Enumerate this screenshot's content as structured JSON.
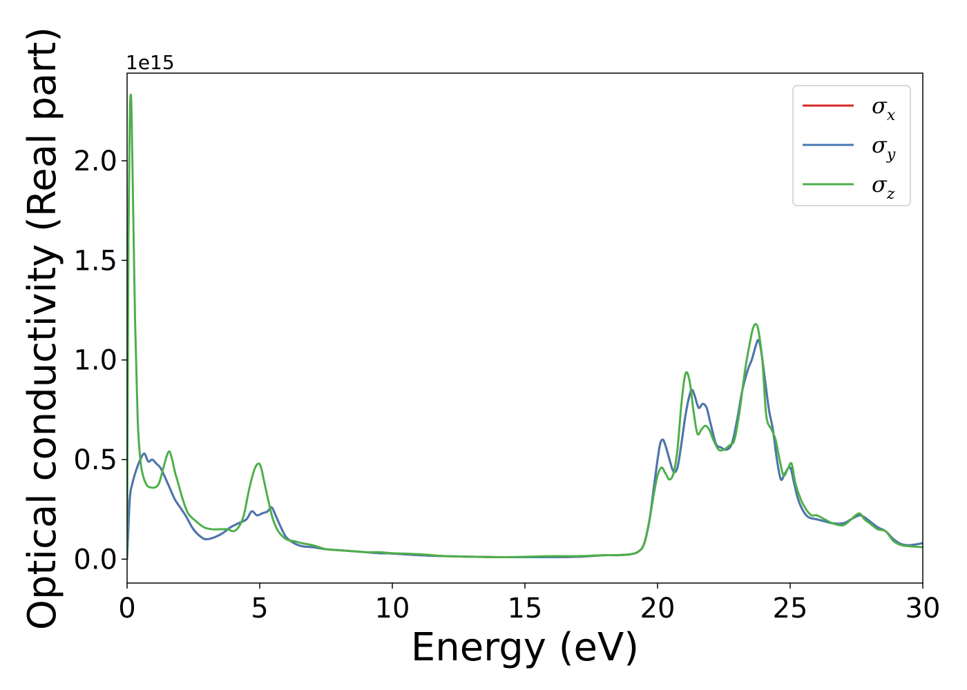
{
  "chart_data": {
    "type": "line",
    "title": "",
    "xlabel": "Energy (eV)",
    "ylabel": "Optical conductivity (Real part)",
    "y_offset_label": "1e15",
    "xlim": [
      0,
      30
    ],
    "ylim": [
      -0.12,
      2.44
    ],
    "x_ticks": [
      0,
      5,
      10,
      15,
      20,
      25,
      30
    ],
    "x_tick_labels": [
      "0",
      "5",
      "10",
      "15",
      "20",
      "25",
      "30"
    ],
    "y_ticks": [
      0.0,
      0.5,
      1.0,
      1.5,
      2.0
    ],
    "y_tick_labels": [
      "0.0",
      "0.5",
      "1.0",
      "1.5",
      "2.0"
    ],
    "grid": false,
    "legend_position": "top-right",
    "series": [
      {
        "name": "σx",
        "sub": "x",
        "color": "#d62728",
        "x": [
          0,
          0.1,
          0.2,
          0.35,
          0.5,
          0.65,
          0.8,
          0.95,
          1.1,
          1.25,
          1.4,
          1.6,
          1.8,
          2.0,
          2.2,
          2.5,
          2.8,
          3.0,
          3.3,
          3.6,
          3.9,
          4.2,
          4.5,
          4.7,
          4.9,
          5.1,
          5.3,
          5.45,
          5.6,
          5.8,
          6.0,
          6.3,
          6.6,
          7.0,
          7.5,
          8.0,
          8.5,
          9.0,
          9.5,
          10.0,
          11.0,
          12.0,
          13.0,
          14.0,
          15.0,
          16.0,
          17.0,
          18.0,
          18.5,
          19.0,
          19.3,
          19.5,
          19.7,
          19.85,
          20.0,
          20.1,
          20.2,
          20.3,
          20.45,
          20.6,
          20.75,
          20.9,
          21.05,
          21.2,
          21.3,
          21.4,
          21.55,
          21.7,
          21.85,
          22.0,
          22.2,
          22.4,
          22.6,
          22.8,
          23.0,
          23.2,
          23.4,
          23.55,
          23.7,
          23.8,
          23.9,
          24.05,
          24.2,
          24.35,
          24.5,
          24.65,
          24.8,
          25.0,
          25.15,
          25.3,
          25.5,
          25.7,
          26.0,
          26.3,
          26.6,
          27.0,
          27.3,
          27.6,
          27.8,
          28.0,
          28.3,
          28.6,
          28.9,
          29.2,
          29.5,
          30.0
        ],
        "values": [
          0.0,
          0.3,
          0.38,
          0.45,
          0.5,
          0.53,
          0.49,
          0.5,
          0.48,
          0.46,
          0.42,
          0.36,
          0.3,
          0.26,
          0.22,
          0.15,
          0.11,
          0.1,
          0.11,
          0.13,
          0.16,
          0.18,
          0.2,
          0.24,
          0.22,
          0.23,
          0.24,
          0.26,
          0.22,
          0.16,
          0.11,
          0.08,
          0.065,
          0.06,
          0.05,
          0.045,
          0.04,
          0.035,
          0.03,
          0.028,
          0.02,
          0.015,
          0.012,
          0.01,
          0.01,
          0.01,
          0.012,
          0.02,
          0.02,
          0.025,
          0.04,
          0.08,
          0.2,
          0.35,
          0.5,
          0.58,
          0.6,
          0.57,
          0.5,
          0.44,
          0.46,
          0.58,
          0.72,
          0.82,
          0.85,
          0.82,
          0.76,
          0.78,
          0.76,
          0.68,
          0.58,
          0.56,
          0.55,
          0.58,
          0.7,
          0.85,
          0.95,
          1.0,
          1.07,
          1.1,
          1.05,
          0.9,
          0.75,
          0.65,
          0.5,
          0.4,
          0.43,
          0.46,
          0.38,
          0.3,
          0.24,
          0.21,
          0.2,
          0.19,
          0.18,
          0.18,
          0.2,
          0.22,
          0.21,
          0.19,
          0.16,
          0.14,
          0.1,
          0.075,
          0.07,
          0.08
        ]
      },
      {
        "name": "σy",
        "sub": "y",
        "color": "#4878b0",
        "x": [
          0,
          0.1,
          0.2,
          0.35,
          0.5,
          0.65,
          0.8,
          0.95,
          1.1,
          1.25,
          1.4,
          1.6,
          1.8,
          2.0,
          2.2,
          2.5,
          2.8,
          3.0,
          3.3,
          3.6,
          3.9,
          4.2,
          4.5,
          4.7,
          4.9,
          5.1,
          5.3,
          5.45,
          5.6,
          5.8,
          6.0,
          6.3,
          6.6,
          7.0,
          7.5,
          8.0,
          8.5,
          9.0,
          9.5,
          10.0,
          11.0,
          12.0,
          13.0,
          14.0,
          15.0,
          16.0,
          17.0,
          18.0,
          18.5,
          19.0,
          19.3,
          19.5,
          19.7,
          19.85,
          20.0,
          20.1,
          20.2,
          20.3,
          20.45,
          20.6,
          20.75,
          20.9,
          21.05,
          21.2,
          21.3,
          21.4,
          21.55,
          21.7,
          21.85,
          22.0,
          22.2,
          22.4,
          22.6,
          22.8,
          23.0,
          23.2,
          23.4,
          23.55,
          23.7,
          23.8,
          23.9,
          24.05,
          24.2,
          24.35,
          24.5,
          24.65,
          24.8,
          25.0,
          25.15,
          25.3,
          25.5,
          25.7,
          26.0,
          26.3,
          26.6,
          27.0,
          27.3,
          27.6,
          27.8,
          28.0,
          28.3,
          28.6,
          28.9,
          29.2,
          29.5,
          30.0
        ],
        "values": [
          0.0,
          0.3,
          0.38,
          0.45,
          0.5,
          0.53,
          0.49,
          0.5,
          0.48,
          0.46,
          0.42,
          0.36,
          0.3,
          0.26,
          0.22,
          0.15,
          0.11,
          0.1,
          0.11,
          0.13,
          0.16,
          0.18,
          0.2,
          0.24,
          0.22,
          0.23,
          0.24,
          0.26,
          0.22,
          0.16,
          0.11,
          0.08,
          0.065,
          0.06,
          0.05,
          0.045,
          0.04,
          0.035,
          0.03,
          0.028,
          0.02,
          0.015,
          0.012,
          0.01,
          0.01,
          0.01,
          0.012,
          0.02,
          0.02,
          0.025,
          0.04,
          0.08,
          0.2,
          0.35,
          0.5,
          0.58,
          0.6,
          0.57,
          0.5,
          0.44,
          0.46,
          0.58,
          0.72,
          0.82,
          0.85,
          0.82,
          0.76,
          0.78,
          0.76,
          0.68,
          0.58,
          0.56,
          0.55,
          0.58,
          0.7,
          0.85,
          0.95,
          1.0,
          1.07,
          1.1,
          1.05,
          0.9,
          0.75,
          0.65,
          0.5,
          0.4,
          0.43,
          0.46,
          0.38,
          0.3,
          0.24,
          0.21,
          0.2,
          0.19,
          0.18,
          0.18,
          0.2,
          0.22,
          0.21,
          0.19,
          0.16,
          0.14,
          0.1,
          0.075,
          0.07,
          0.08
        ]
      },
      {
        "name": "σz",
        "sub": "z",
        "color": "#4daf4a",
        "x": [
          0,
          0.05,
          0.1,
          0.15,
          0.2,
          0.3,
          0.4,
          0.5,
          0.6,
          0.75,
          0.9,
          1.05,
          1.2,
          1.35,
          1.5,
          1.6,
          1.7,
          1.8,
          1.95,
          2.1,
          2.3,
          2.6,
          2.9,
          3.2,
          3.5,
          3.8,
          4.0,
          4.2,
          4.4,
          4.6,
          4.8,
          4.95,
          5.05,
          5.2,
          5.35,
          5.5,
          5.7,
          6.0,
          6.3,
          6.6,
          7.0,
          7.5,
          8.0,
          8.5,
          9.0,
          9.5,
          10.0,
          11.0,
          12.0,
          13.0,
          14.0,
          15.0,
          16.0,
          17.0,
          18.0,
          18.5,
          19.0,
          19.3,
          19.5,
          19.7,
          19.85,
          20.0,
          20.15,
          20.3,
          20.45,
          20.6,
          20.75,
          20.9,
          21.05,
          21.2,
          21.35,
          21.5,
          21.65,
          21.8,
          21.95,
          22.1,
          22.3,
          22.5,
          22.7,
          22.9,
          23.1,
          23.3,
          23.5,
          23.6,
          23.7,
          23.8,
          23.95,
          24.1,
          24.3,
          24.45,
          24.6,
          24.75,
          24.9,
          25.05,
          25.2,
          25.4,
          25.6,
          25.8,
          26.0,
          26.3,
          26.6,
          27.0,
          27.3,
          27.6,
          27.8,
          28.0,
          28.3,
          28.6,
          28.9,
          29.2,
          29.5,
          30.0
        ],
        "values": [
          0.0,
          1.6,
          2.2,
          2.32,
          2.0,
          1.2,
          0.7,
          0.5,
          0.42,
          0.37,
          0.36,
          0.36,
          0.38,
          0.45,
          0.52,
          0.54,
          0.5,
          0.44,
          0.37,
          0.3,
          0.23,
          0.19,
          0.16,
          0.15,
          0.15,
          0.15,
          0.14,
          0.16,
          0.22,
          0.35,
          0.45,
          0.48,
          0.46,
          0.37,
          0.28,
          0.2,
          0.14,
          0.1,
          0.09,
          0.08,
          0.07,
          0.05,
          0.045,
          0.04,
          0.035,
          0.035,
          0.03,
          0.025,
          0.015,
          0.012,
          0.01,
          0.012,
          0.015,
          0.015,
          0.02,
          0.02,
          0.025,
          0.04,
          0.08,
          0.2,
          0.32,
          0.42,
          0.46,
          0.43,
          0.4,
          0.43,
          0.55,
          0.78,
          0.93,
          0.9,
          0.75,
          0.63,
          0.65,
          0.67,
          0.65,
          0.6,
          0.55,
          0.55,
          0.57,
          0.6,
          0.75,
          0.95,
          1.1,
          1.16,
          1.18,
          1.15,
          1.0,
          0.72,
          0.65,
          0.6,
          0.5,
          0.42,
          0.45,
          0.48,
          0.38,
          0.3,
          0.25,
          0.22,
          0.22,
          0.2,
          0.18,
          0.17,
          0.2,
          0.23,
          0.2,
          0.18,
          0.15,
          0.14,
          0.09,
          0.07,
          0.065,
          0.06
        ]
      }
    ]
  }
}
